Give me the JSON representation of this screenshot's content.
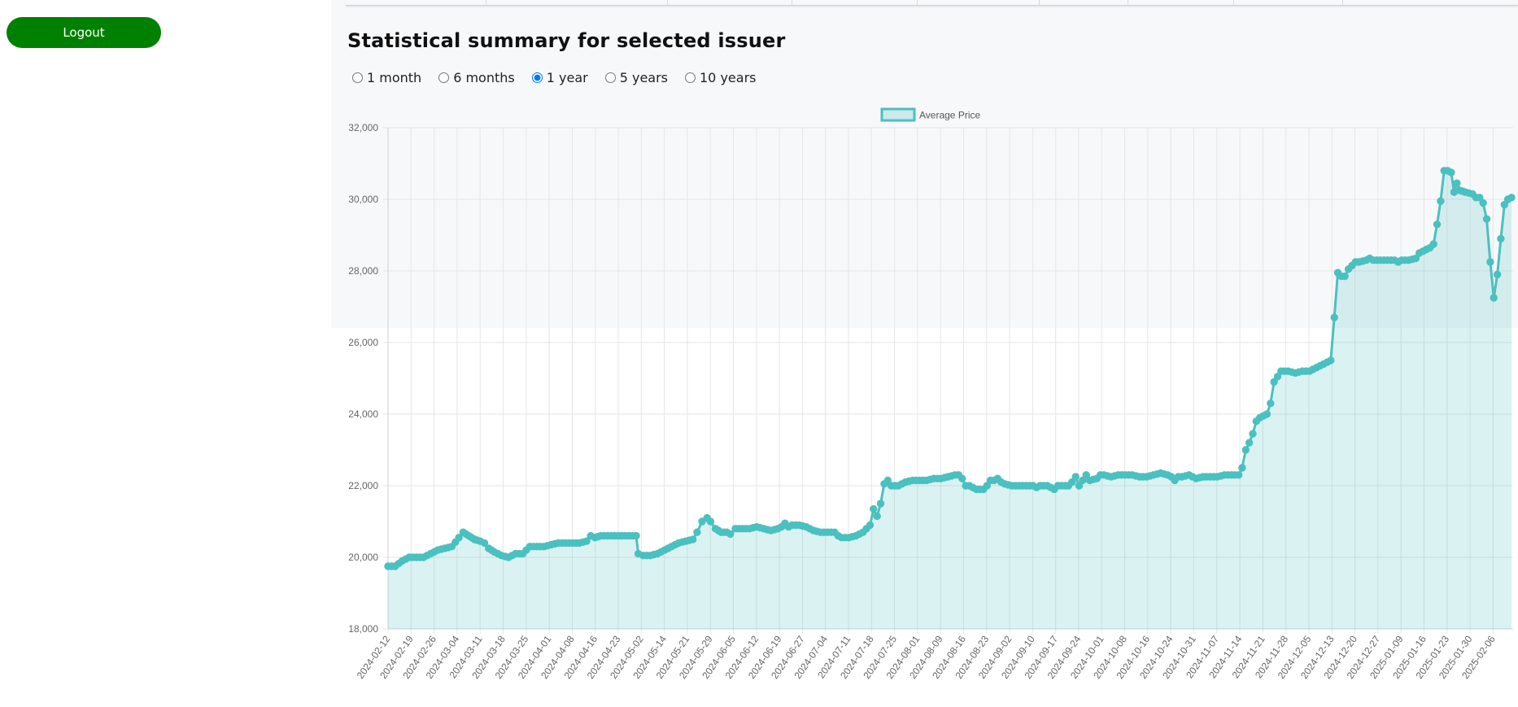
{
  "sidebar": {
    "logout_label": "Logout"
  },
  "summary": {
    "title": "Statistical summary for selected issuer",
    "ranges": [
      {
        "label": "1 month",
        "checked": false
      },
      {
        "label": "6 months",
        "checked": false
      },
      {
        "label": "1 year",
        "checked": true
      },
      {
        "label": "5 years",
        "checked": false
      },
      {
        "label": "10 years",
        "checked": false
      }
    ]
  },
  "colors": {
    "accent": "#008000",
    "series": "#4bc0c0",
    "fill": "rgba(75,192,192,0.2)"
  },
  "chart_data": {
    "type": "line",
    "title": "",
    "xlabel": "",
    "ylabel": "",
    "ylim": [
      18000,
      32000
    ],
    "yticks": [
      "18,000",
      "20,000",
      "22,000",
      "24,000",
      "26,000",
      "28,000",
      "30,000",
      "32,000"
    ],
    "grid": true,
    "legend": "top",
    "x_ticks": [
      "2024-02-12",
      "2024-02-19",
      "2024-02-26",
      "2024-03-04",
      "2024-03-11",
      "2024-03-18",
      "2024-03-25",
      "2024-04-01",
      "2024-04-08",
      "2024-04-16",
      "2024-04-23",
      "2024-05-02",
      "2024-05-14",
      "2024-05-21",
      "2024-05-29",
      "2024-06-05",
      "2024-06-12",
      "2024-06-19",
      "2024-06-27",
      "2024-07-04",
      "2024-07-11",
      "2024-07-18",
      "2024-07-25",
      "2024-08-01",
      "2024-08-09",
      "2024-08-16",
      "2024-08-23",
      "2024-09-02",
      "2024-09-10",
      "2024-09-17",
      "2024-09-24",
      "2024-10-01",
      "2024-10-08",
      "2024-10-16",
      "2024-10-24",
      "2024-10-31",
      "2024-11-07",
      "2024-11-14",
      "2024-11-21",
      "2024-11-28",
      "2024-12-05",
      "2024-12-13",
      "2024-12-20",
      "2024-12-27",
      "2025-01-09",
      "2025-01-16",
      "2025-01-23",
      "2025-01-30",
      "2025-02-06"
    ],
    "series": [
      {
        "name": "Average Price",
        "anchors": [
          [
            0,
            19750
          ],
          [
            1,
            19750
          ],
          [
            2,
            19900
          ],
          [
            3,
            20000
          ],
          [
            4,
            20000
          ],
          [
            5,
            20000
          ],
          [
            6,
            20100
          ],
          [
            7,
            20200
          ],
          [
            8,
            20250
          ],
          [
            9,
            20300
          ],
          [
            10,
            20550
          ],
          [
            10.6,
            20700
          ],
          [
            11.4,
            20600
          ],
          [
            12.2,
            20500
          ],
          [
            13,
            20450
          ],
          [
            13.6,
            20400
          ],
          [
            14.2,
            20250
          ],
          [
            15,
            20150
          ],
          [
            16,
            20050
          ],
          [
            17,
            20000
          ],
          [
            18,
            20100
          ],
          [
            19,
            20100
          ],
          [
            20,
            20300
          ],
          [
            21,
            20300
          ],
          [
            22,
            20300
          ],
          [
            23,
            20350
          ],
          [
            24,
            20400
          ],
          [
            25,
            20400
          ],
          [
            26,
            20400
          ],
          [
            27,
            20400
          ],
          [
            28,
            20450
          ],
          [
            28.6,
            20600
          ],
          [
            29.2,
            20550
          ],
          [
            30,
            20600
          ],
          [
            31,
            20600
          ],
          [
            32,
            20600
          ],
          [
            33,
            20600
          ],
          [
            34,
            20600
          ],
          [
            35,
            20600
          ],
          [
            35.3,
            20100
          ],
          [
            36,
            20050
          ],
          [
            37,
            20050
          ],
          [
            38,
            20100
          ],
          [
            39,
            20200
          ],
          [
            40,
            20300
          ],
          [
            41,
            20400
          ],
          [
            42,
            20450
          ],
          [
            43,
            20500
          ],
          [
            43.6,
            20700
          ],
          [
            44.3,
            21000
          ],
          [
            45,
            21100
          ],
          [
            45.5,
            21000
          ],
          [
            46.2,
            20800
          ],
          [
            47,
            20700
          ],
          [
            47.8,
            20700
          ],
          [
            48.3,
            20650
          ],
          [
            49,
            20800
          ],
          [
            50,
            20800
          ],
          [
            51,
            20800
          ],
          [
            52,
            20850
          ],
          [
            53,
            20800
          ],
          [
            54,
            20750
          ],
          [
            55,
            20800
          ],
          [
            55.5,
            20850
          ],
          [
            56,
            20950
          ],
          [
            56.5,
            20850
          ],
          [
            57,
            20900
          ],
          [
            58,
            20900
          ],
          [
            59,
            20850
          ],
          [
            60,
            20750
          ],
          [
            61,
            20700
          ],
          [
            62,
            20700
          ],
          [
            63,
            20700
          ],
          [
            63.5,
            20600
          ],
          [
            64,
            20550
          ],
          [
            65,
            20550
          ],
          [
            66,
            20600
          ],
          [
            67,
            20700
          ],
          [
            67.5,
            20800
          ],
          [
            68,
            20900
          ],
          [
            68.5,
            21350
          ],
          [
            69,
            21150
          ],
          [
            69.5,
            21500
          ],
          [
            70,
            22050
          ],
          [
            70.5,
            22150
          ],
          [
            71,
            22000
          ],
          [
            72,
            22000
          ],
          [
            73,
            22100
          ],
          [
            74,
            22150
          ],
          [
            75,
            22150
          ],
          [
            76,
            22150
          ],
          [
            77,
            22200
          ],
          [
            78,
            22200
          ],
          [
            79,
            22250
          ],
          [
            80,
            22300
          ],
          [
            80.5,
            22300
          ],
          [
            81,
            22200
          ],
          [
            81.5,
            22000
          ],
          [
            82,
            22000
          ],
          [
            83,
            21900
          ],
          [
            84,
            21900
          ],
          [
            84.5,
            22000
          ],
          [
            85,
            22150
          ],
          [
            85.5,
            22150
          ],
          [
            86,
            22200
          ],
          [
            86.5,
            22100
          ],
          [
            87,
            22050
          ],
          [
            88,
            22000
          ],
          [
            89,
            22000
          ],
          [
            90,
            22000
          ],
          [
            91,
            22000
          ],
          [
            91.5,
            21950
          ],
          [
            92,
            22000
          ],
          [
            93,
            22000
          ],
          [
            94,
            21900
          ],
          [
            94.5,
            22000
          ],
          [
            95,
            22000
          ],
          [
            96,
            22000
          ],
          [
            96.5,
            22100
          ],
          [
            97,
            22250
          ],
          [
            97.5,
            22000
          ],
          [
            98,
            22150
          ],
          [
            98.5,
            22300
          ],
          [
            99,
            22150
          ],
          [
            100,
            22200
          ],
          [
            100.5,
            22300
          ],
          [
            101,
            22300
          ],
          [
            102,
            22250
          ],
          [
            103,
            22300
          ],
          [
            104,
            22300
          ],
          [
            105,
            22300
          ],
          [
            106,
            22250
          ],
          [
            107,
            22250
          ],
          [
            108,
            22300
          ],
          [
            109,
            22350
          ],
          [
            110,
            22300
          ],
          [
            110.5,
            22250
          ],
          [
            111,
            22150
          ],
          [
            111.5,
            22250
          ],
          [
            112,
            22250
          ],
          [
            113,
            22300
          ],
          [
            114,
            22200
          ],
          [
            115,
            22250
          ],
          [
            116,
            22250
          ],
          [
            117,
            22250
          ],
          [
            118,
            22300
          ],
          [
            119,
            22300
          ],
          [
            120,
            22300
          ],
          [
            120.5,
            22500
          ],
          [
            121,
            23000
          ],
          [
            121.5,
            23200
          ],
          [
            122,
            23450
          ],
          [
            122.5,
            23800
          ],
          [
            123,
            23900
          ],
          [
            124,
            24000
          ],
          [
            124.5,
            24300
          ],
          [
            125,
            24900
          ],
          [
            125.5,
            25050
          ],
          [
            126,
            25200
          ],
          [
            127,
            25200
          ],
          [
            128,
            25150
          ],
          [
            129,
            25200
          ],
          [
            130,
            25200
          ],
          [
            131,
            25300
          ],
          [
            132,
            25400
          ],
          [
            133,
            25500
          ],
          [
            133.5,
            26700
          ],
          [
            134,
            27950
          ],
          [
            134.5,
            27850
          ],
          [
            135,
            27850
          ],
          [
            135.5,
            28050
          ],
          [
            136,
            28150
          ],
          [
            136.5,
            28250
          ],
          [
            137,
            28250
          ],
          [
            138,
            28300
          ],
          [
            138.5,
            28350
          ],
          [
            139,
            28300
          ],
          [
            140,
            28300
          ],
          [
            141,
            28300
          ],
          [
            142,
            28300
          ],
          [
            142.5,
            28250
          ],
          [
            143,
            28300
          ],
          [
            144,
            28300
          ],
          [
            145,
            28350
          ],
          [
            145.5,
            28500
          ],
          [
            146,
            28550
          ],
          [
            146.5,
            28600
          ],
          [
            147,
            28650
          ],
          [
            147.5,
            28750
          ],
          [
            148,
            29300
          ],
          [
            148.5,
            29950
          ],
          [
            149,
            30800
          ],
          [
            149.5,
            30800
          ],
          [
            150,
            30750
          ],
          [
            150.4,
            30200
          ],
          [
            150.8,
            30450
          ],
          [
            151.2,
            30250
          ],
          [
            152,
            30200
          ],
          [
            153,
            30150
          ],
          [
            153.5,
            30050
          ],
          [
            154,
            30050
          ],
          [
            154.5,
            29900
          ],
          [
            155,
            29450
          ],
          [
            155.5,
            28250
          ],
          [
            156,
            27250
          ],
          [
            156.5,
            27900
          ],
          [
            157,
            28900
          ],
          [
            157.5,
            29850
          ],
          [
            158,
            30000
          ],
          [
            158.5,
            30050
          ]
        ]
      }
    ]
  }
}
